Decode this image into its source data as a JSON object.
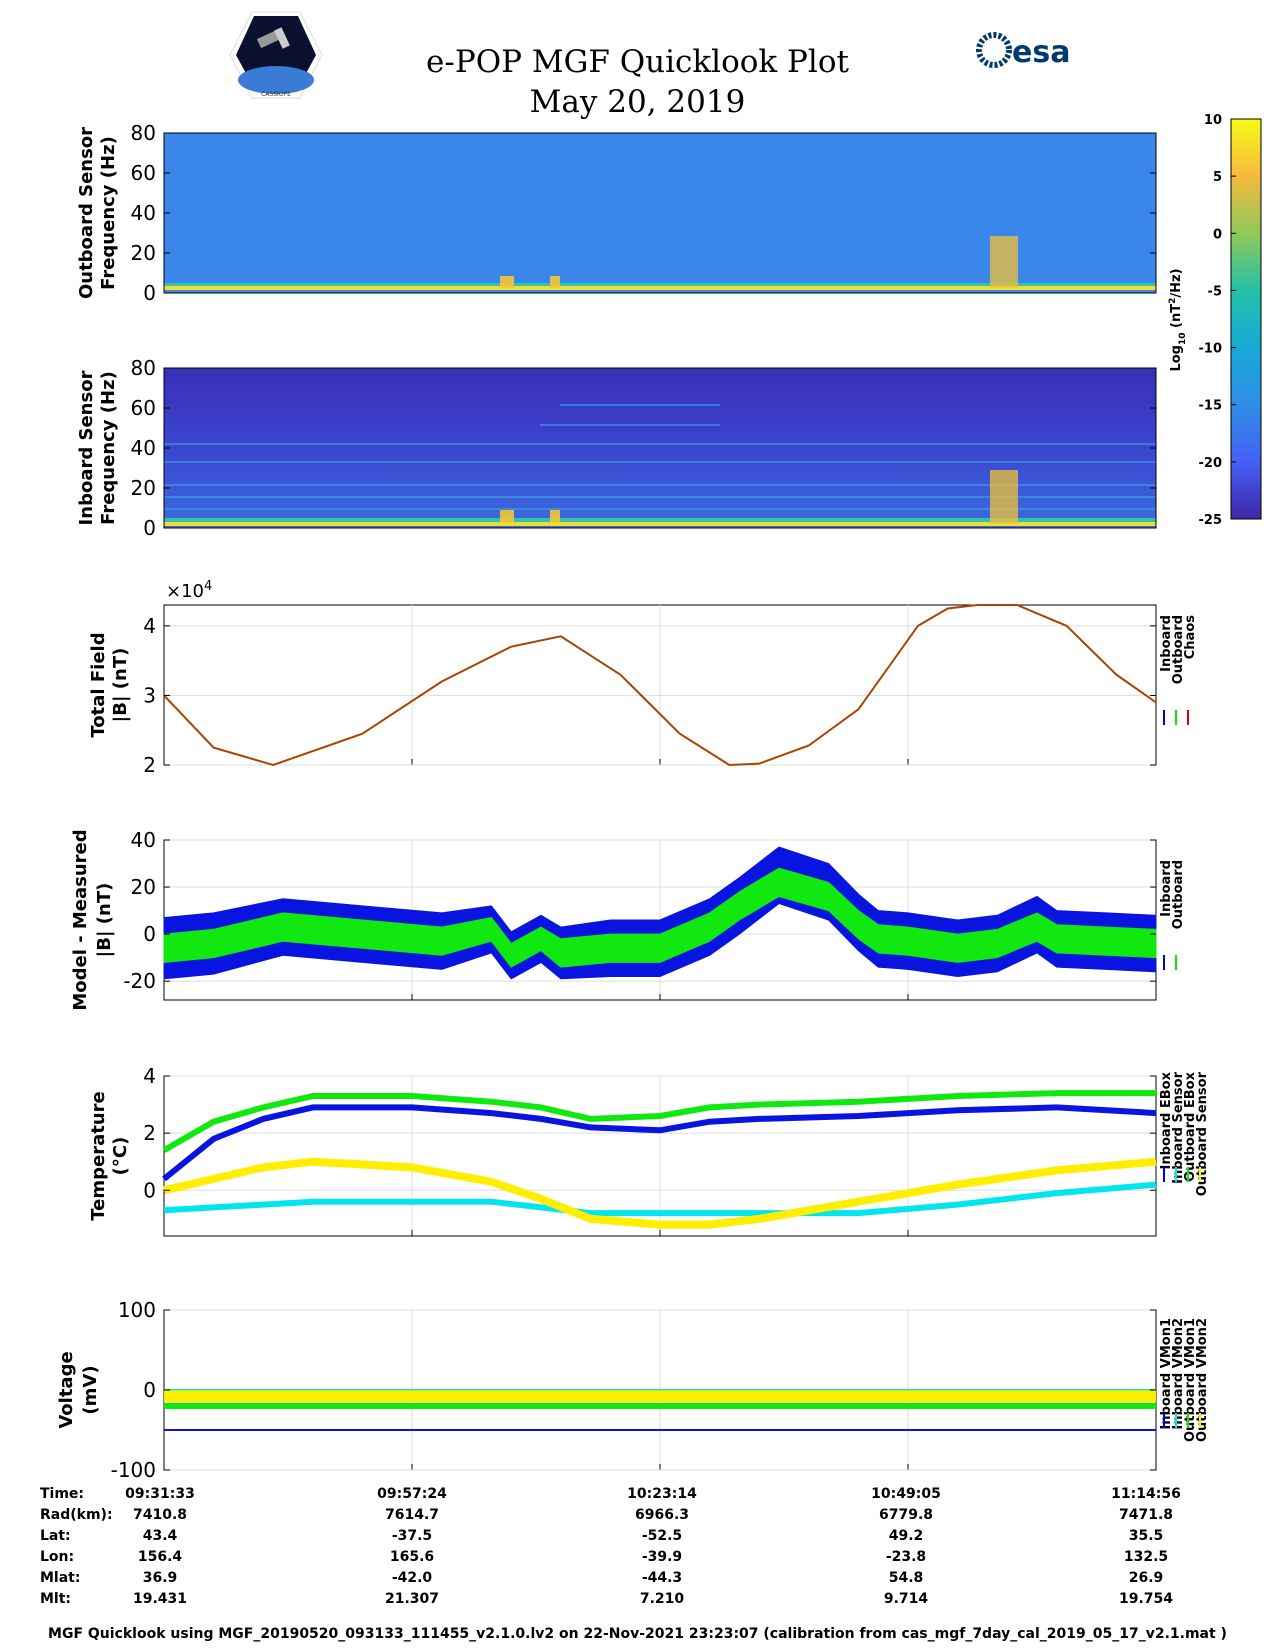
{
  "title_line1": "e-POP MGF Quicklook Plot",
  "title_line2": "May 20, 2019",
  "logo_esa_text": "esa",
  "logo_cassiope_text": "CASSIOPE",
  "colors": {
    "blue": "#0000ee",
    "green": "#00ee00",
    "yellow": "#ffee00",
    "cyan": "#00e5ee",
    "red": "#dd0000",
    "brown": "#aa4400"
  },
  "chart_data": [
    {
      "type": "heatmap",
      "name": "outboard-spectrogram",
      "ylabel": [
        "Outboard Sensor",
        "Frequency (Hz)"
      ],
      "ylim": [
        0,
        80
      ],
      "yticks": [
        "0",
        "20",
        "40",
        "60",
        "80"
      ]
    },
    {
      "type": "heatmap",
      "name": "inboard-spectrogram",
      "ylabel": [
        "Inboard Sensor",
        "Frequency (Hz)"
      ],
      "ylim": [
        0,
        80
      ],
      "yticks": [
        "0",
        "20",
        "40",
        "60",
        "80"
      ]
    },
    {
      "type": "colorbar",
      "label": "Log10 (nT2/Hz)",
      "range": [
        -25,
        10
      ],
      "ticks": [
        "10",
        "5",
        "0",
        "-5",
        "-10",
        "-15",
        "-20",
        "-25"
      ]
    },
    {
      "type": "line",
      "name": "total-field",
      "ylabel": [
        "Total Field",
        "|B| (nT)"
      ],
      "ylim": [
        20000,
        43000
      ],
      "exponent": "×10",
      "exponent_power": "4",
      "yticks": [
        "2",
        "3",
        "4"
      ],
      "legend": [
        "Inboard",
        "Outboard",
        "Chaos"
      ],
      "x": [
        0,
        0.05,
        0.11,
        0.2,
        0.28,
        0.35,
        0.4,
        0.46,
        0.52,
        0.57,
        0.6,
        0.65,
        0.7,
        0.74,
        0.76,
        0.79,
        0.82,
        0.86,
        0.91,
        0.96,
        1.0
      ],
      "y": [
        30000,
        22500,
        20000,
        24500,
        32000,
        37000,
        38500,
        33000,
        24500,
        20000,
        20200,
        22800,
        28000,
        36000,
        40000,
        42500,
        43000,
        43000,
        40000,
        33000,
        29000
      ]
    },
    {
      "type": "line",
      "name": "model-minus-measured",
      "ylabel": [
        "Model - Measured",
        "|B| (nT)"
      ],
      "ylim": [
        -28,
        40
      ],
      "yticks": [
        "-20",
        "0",
        "20",
        "40"
      ],
      "legend": [
        "Inboard",
        "Outboard"
      ],
      "x": [
        0,
        0.05,
        0.12,
        0.2,
        0.28,
        0.33,
        0.35,
        0.38,
        0.4,
        0.45,
        0.5,
        0.55,
        0.58,
        0.62,
        0.67,
        0.7,
        0.72,
        0.75,
        0.8,
        0.84,
        0.88,
        0.9,
        0.95,
        1.0
      ],
      "inboard_center": [
        -6,
        -4,
        3,
        0,
        -3,
        2,
        -9,
        -2,
        -8,
        -6,
        -6,
        3,
        12,
        25,
        18,
        5,
        -2,
        -3,
        -6,
        -4,
        4,
        -2,
        -3,
        -4
      ],
      "inboard_halfwidth": [
        13,
        13,
        12,
        12,
        12,
        10,
        10,
        10,
        11,
        12,
        12,
        12,
        12,
        12,
        12,
        12,
        12,
        12,
        12,
        12,
        12,
        12,
        12,
        12
      ],
      "outboard_center": [
        -6,
        -4,
        3,
        0,
        -3,
        2,
        -9,
        -2,
        -8,
        -6,
        -6,
        3,
        12,
        22,
        16,
        4,
        -2,
        -3,
        -6,
        -4,
        3,
        -2,
        -3,
        -4
      ],
      "outboard_halfwidth": [
        6,
        6,
        6,
        6,
        6,
        5,
        5,
        5,
        6,
        6,
        6,
        6,
        6,
        6,
        6,
        6,
        6,
        6,
        6,
        6,
        6,
        6,
        6,
        6
      ]
    },
    {
      "type": "line",
      "name": "temperature",
      "ylabel": [
        "Temperature",
        "(°C)"
      ],
      "ylim": [
        -1.6,
        4
      ],
      "yticks": [
        "0",
        "2",
        "4"
      ],
      "legend": [
        "Inboard EBox",
        "Inboard Sensor",
        "Outboard EBox",
        "Outboard Sensor"
      ],
      "x": [
        0,
        0.05,
        0.1,
        0.15,
        0.25,
        0.33,
        0.38,
        0.43,
        0.5,
        0.55,
        0.6,
        0.7,
        0.8,
        0.9,
        1.0
      ],
      "inboard_ebox": [
        0.4,
        1.8,
        2.5,
        2.9,
        2.9,
        2.7,
        2.5,
        2.2,
        2.1,
        2.4,
        2.5,
        2.6,
        2.8,
        2.9,
        2.7
      ],
      "inboard_sensor": [
        1.4,
        2.4,
        2.9,
        3.3,
        3.3,
        3.1,
        2.9,
        2.5,
        2.6,
        2.9,
        3.0,
        3.1,
        3.3,
        3.4,
        3.4
      ],
      "outboard_ebox": [
        -0.7,
        -0.6,
        -0.5,
        -0.4,
        -0.4,
        -0.4,
        -0.6,
        -0.8,
        -0.8,
        -0.8,
        -0.8,
        -0.8,
        -0.5,
        -0.1,
        0.2
      ],
      "outboard_sensor": [
        0,
        0.4,
        0.8,
        1.0,
        0.8,
        0.3,
        -0.3,
        -1.0,
        -1.2,
        -1.2,
        -1.0,
        -0.4,
        0.2,
        0.7,
        1.0
      ]
    },
    {
      "type": "line",
      "name": "voltage",
      "ylabel": [
        "Voltage",
        "(mV)"
      ],
      "ylim": [
        -100,
        100
      ],
      "yticks": [
        "-100",
        "0",
        "100"
      ],
      "legend": [
        "Inboard VMon1",
        "Inboard VMon2",
        "Outboard VMon1",
        "Outboard VMon2"
      ],
      "inboard_vmon1": -50,
      "inboard_vmon2": 0,
      "outboard_vmon1": -20,
      "outboard_vmon2": -8
    }
  ],
  "info": {
    "labels": [
      "Time:",
      "Rad(km):",
      "Lat:",
      "Lon:",
      "Mlat:",
      "Mlt:"
    ],
    "columns": [
      [
        "09:31:33",
        "7410.8",
        "43.4",
        "156.4",
        "36.9",
        "19.431"
      ],
      [
        "09:57:24",
        "7614.7",
        "-37.5",
        "165.6",
        "-42.0",
        "21.307"
      ],
      [
        "10:23:14",
        "6966.3",
        "-52.5",
        "-39.9",
        "-44.3",
        "7.210"
      ],
      [
        "10:49:05",
        "6779.8",
        "49.2",
        "-23.8",
        "54.8",
        "9.714"
      ],
      [
        "11:14:56",
        "7471.8",
        "35.5",
        "132.5",
        "26.9",
        "19.754"
      ]
    ]
  },
  "footer": "MGF Quicklook using MGF_20190520_093133_111455_v2.1.0.lv2 on 22-Nov-2021 23:23:07 (calibration from cas_mgf_7day_cal_2019_05_17_v2.1.mat )"
}
